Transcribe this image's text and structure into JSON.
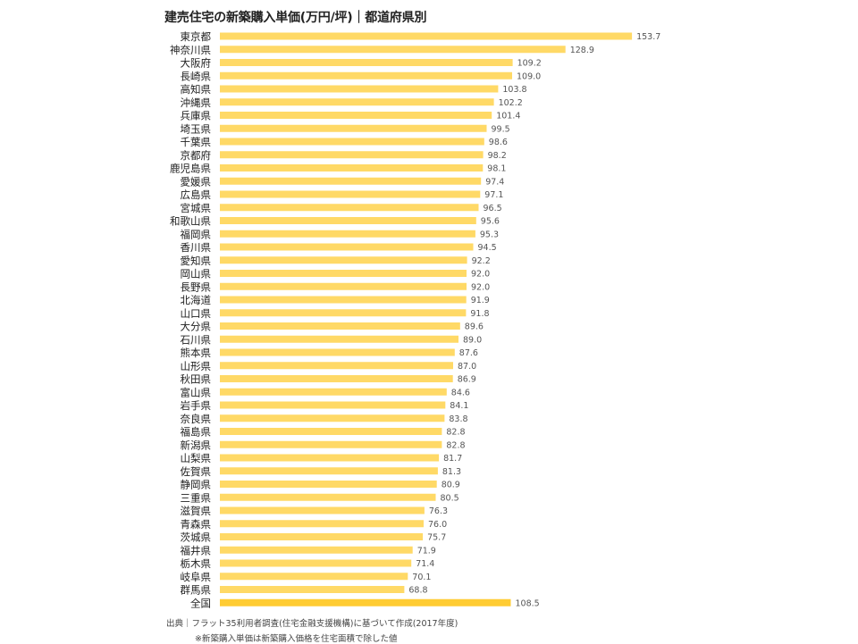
{
  "chart_data": {
    "type": "bar",
    "orientation": "horizontal",
    "title": "建売住宅の新築購入単価(万円/坪)｜都道府県別",
    "xlabel": "",
    "ylabel": "",
    "xlim": [
      0,
      160
    ],
    "grid": false,
    "bar_color": "#FFD966",
    "highlight_color": "#FFCC33",
    "categories": [
      "東京都",
      "神奈川県",
      "大阪府",
      "長崎県",
      "高知県",
      "沖縄県",
      "兵庫県",
      "埼玉県",
      "千葉県",
      "京都府",
      "鹿児島県",
      "愛媛県",
      "広島県",
      "宮城県",
      "和歌山県",
      "福岡県",
      "香川県",
      "愛知県",
      "岡山県",
      "長野県",
      "北海道",
      "山口県",
      "大分県",
      "石川県",
      "熊本県",
      "山形県",
      "秋田県",
      "富山県",
      "岩手県",
      "奈良県",
      "福島県",
      "新潟県",
      "山梨県",
      "佐賀県",
      "静岡県",
      "三重県",
      "滋賀県",
      "青森県",
      "茨城県",
      "福井県",
      "栃木県",
      "岐阜県",
      "群馬県",
      "全国"
    ],
    "values": [
      153.7,
      128.9,
      109.2,
      109.0,
      103.8,
      102.2,
      101.4,
      99.5,
      98.6,
      98.2,
      98.1,
      97.4,
      97.1,
      96.5,
      95.6,
      95.3,
      94.5,
      92.2,
      92.0,
      92.0,
      91.9,
      91.8,
      89.6,
      89.0,
      87.6,
      87.0,
      86.9,
      84.6,
      84.1,
      83.8,
      82.8,
      82.8,
      81.7,
      81.3,
      80.9,
      80.5,
      76.3,
      76.0,
      75.7,
      71.9,
      71.4,
      70.1,
      68.8,
      108.5
    ],
    "value_labels": [
      "153.7",
      "128.9",
      "109.2",
      "109.0",
      "103.8",
      "102.2",
      "101.4",
      "99.5",
      "98.6",
      "98.2",
      "98.1",
      "97.4",
      "97.1",
      "96.5",
      "95.6",
      "95.3",
      "94.5",
      "92.2",
      "92.0",
      "92.0",
      "91.9",
      "91.8",
      "89.6",
      "89.0",
      "87.6",
      "87.0",
      "86.9",
      "84.6",
      "84.1",
      "83.8",
      "82.8",
      "82.8",
      "81.7",
      "81.3",
      "80.9",
      "80.5",
      "76.3",
      "76.0",
      "75.7",
      "71.9",
      "71.4",
      "70.1",
      "68.8",
      "108.5"
    ],
    "source": "出典｜フラット35利用者調査(住宅金融支援機構)に基づいて作成(2017年度)",
    "note": "※新築購入単価は新築購入価格を住宅面積で除した値"
  }
}
